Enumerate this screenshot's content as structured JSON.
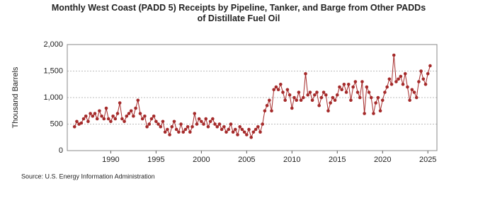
{
  "chart_data": {
    "type": "line",
    "title": "Monthly West Coast (PADD 5) Receipts by Pipeline, Tanker, and Barge from Other PADDs of Distillate Fuel Oil",
    "y_label": "Thousand Barrels",
    "source": "Source: U.S. Energy Information Administration",
    "x": [
      1986,
      1986.25,
      1986.5,
      1986.75,
      1987,
      1987.25,
      1987.5,
      1987.75,
      1988,
      1988.25,
      1988.5,
      1988.75,
      1989,
      1989.25,
      1989.5,
      1989.75,
      1990,
      1990.25,
      1990.5,
      1990.75,
      1991,
      1991.25,
      1991.5,
      1991.75,
      1992,
      1992.25,
      1992.5,
      1992.75,
      1993,
      1993.25,
      1993.5,
      1993.75,
      1994,
      1994.25,
      1994.5,
      1994.75,
      1995,
      1995.25,
      1995.5,
      1995.75,
      1996,
      1996.25,
      1996.5,
      1996.75,
      1997,
      1997.25,
      1997.5,
      1997.75,
      1998,
      1998.25,
      1998.5,
      1998.75,
      1999,
      1999.25,
      1999.5,
      1999.75,
      2000,
      2000.25,
      2000.5,
      2000.75,
      2001,
      2001.25,
      2001.5,
      2001.75,
      2002,
      2002.25,
      2002.5,
      2002.75,
      2003,
      2003.25,
      2003.5,
      2003.75,
      2004,
      2004.25,
      2004.5,
      2004.75,
      2005,
      2005.25,
      2005.5,
      2005.75,
      2006,
      2006.25,
      2006.5,
      2006.75,
      2007,
      2007.25,
      2007.5,
      2007.75,
      2008,
      2008.25,
      2008.5,
      2008.75,
      2009,
      2009.25,
      2009.5,
      2009.75,
      2010,
      2010.25,
      2010.5,
      2010.75,
      2011,
      2011.25,
      2011.5,
      2011.75,
      2012,
      2012.25,
      2012.5,
      2012.75,
      2013,
      2013.25,
      2013.5,
      2013.75,
      2014,
      2014.25,
      2014.5,
      2014.75,
      2015,
      2015.25,
      2015.5,
      2015.75,
      2016,
      2016.25,
      2016.5,
      2016.75,
      2017,
      2017.25,
      2017.5,
      2017.75,
      2018,
      2018.25,
      2018.5,
      2018.75,
      2019,
      2019.25,
      2019.5,
      2019.75,
      2020,
      2020.25,
      2020.5,
      2020.75,
      2021,
      2021.25,
      2021.5,
      2021.75,
      2022,
      2022.25,
      2022.5,
      2022.75,
      2023,
      2023.25,
      2023.5,
      2023.75,
      2024,
      2024.25,
      2024.5,
      2024.75,
      2025,
      2025.25
    ],
    "series": [
      {
        "name": "Receipts",
        "color": "#a52a2a",
        "values": [
          450,
          550,
          500,
          520,
          600,
          650,
          550,
          700,
          650,
          700,
          600,
          750,
          650,
          600,
          800,
          600,
          550,
          650,
          600,
          700,
          900,
          600,
          550,
          650,
          700,
          750,
          650,
          800,
          950,
          700,
          600,
          650,
          450,
          500,
          600,
          650,
          550,
          500,
          450,
          550,
          350,
          400,
          300,
          450,
          550,
          400,
          350,
          500,
          350,
          400,
          450,
          350,
          450,
          700,
          500,
          600,
          550,
          500,
          600,
          450,
          550,
          600,
          500,
          450,
          500,
          400,
          450,
          350,
          400,
          500,
          350,
          400,
          300,
          450,
          400,
          350,
          300,
          400,
          250,
          350,
          400,
          450,
          350,
          500,
          750,
          850,
          950,
          750,
          1150,
          1200,
          1150,
          1250,
          1100,
          950,
          1150,
          1050,
          800,
          1000,
          950,
          1100,
          950,
          1000,
          1450,
          1050,
          1100,
          950,
          1050,
          1100,
          850,
          1000,
          1100,
          1050,
          750,
          900,
          1000,
          950,
          1050,
          1200,
          1150,
          1250,
          1100,
          1250,
          950,
          1200,
          1300,
          1100,
          1000,
          1300,
          700,
          1200,
          1100,
          1000,
          700,
          900,
          1000,
          750,
          950,
          1100,
          1200,
          1350,
          1250,
          1800,
          1300,
          1350,
          1400,
          1250,
          1450,
          1200,
          950,
          1150,
          1100,
          1000,
          1300,
          1500,
          1350,
          1250,
          1450,
          1600
        ]
      }
    ],
    "xlim": [
      1985.2,
      2026
    ],
    "xticks": [
      1990,
      1995,
      2000,
      2005,
      2010,
      2015,
      2020,
      2025
    ],
    "ylim": [
      0,
      2000
    ],
    "yticks": [
      0,
      {
        "value": 500,
        "label": "500"
      },
      {
        "value": 1000,
        "label": "1,000"
      },
      {
        "value": 1500,
        "label": "1,500"
      },
      {
        "value": 2000,
        "label": "2,000"
      }
    ],
    "grid": true
  }
}
